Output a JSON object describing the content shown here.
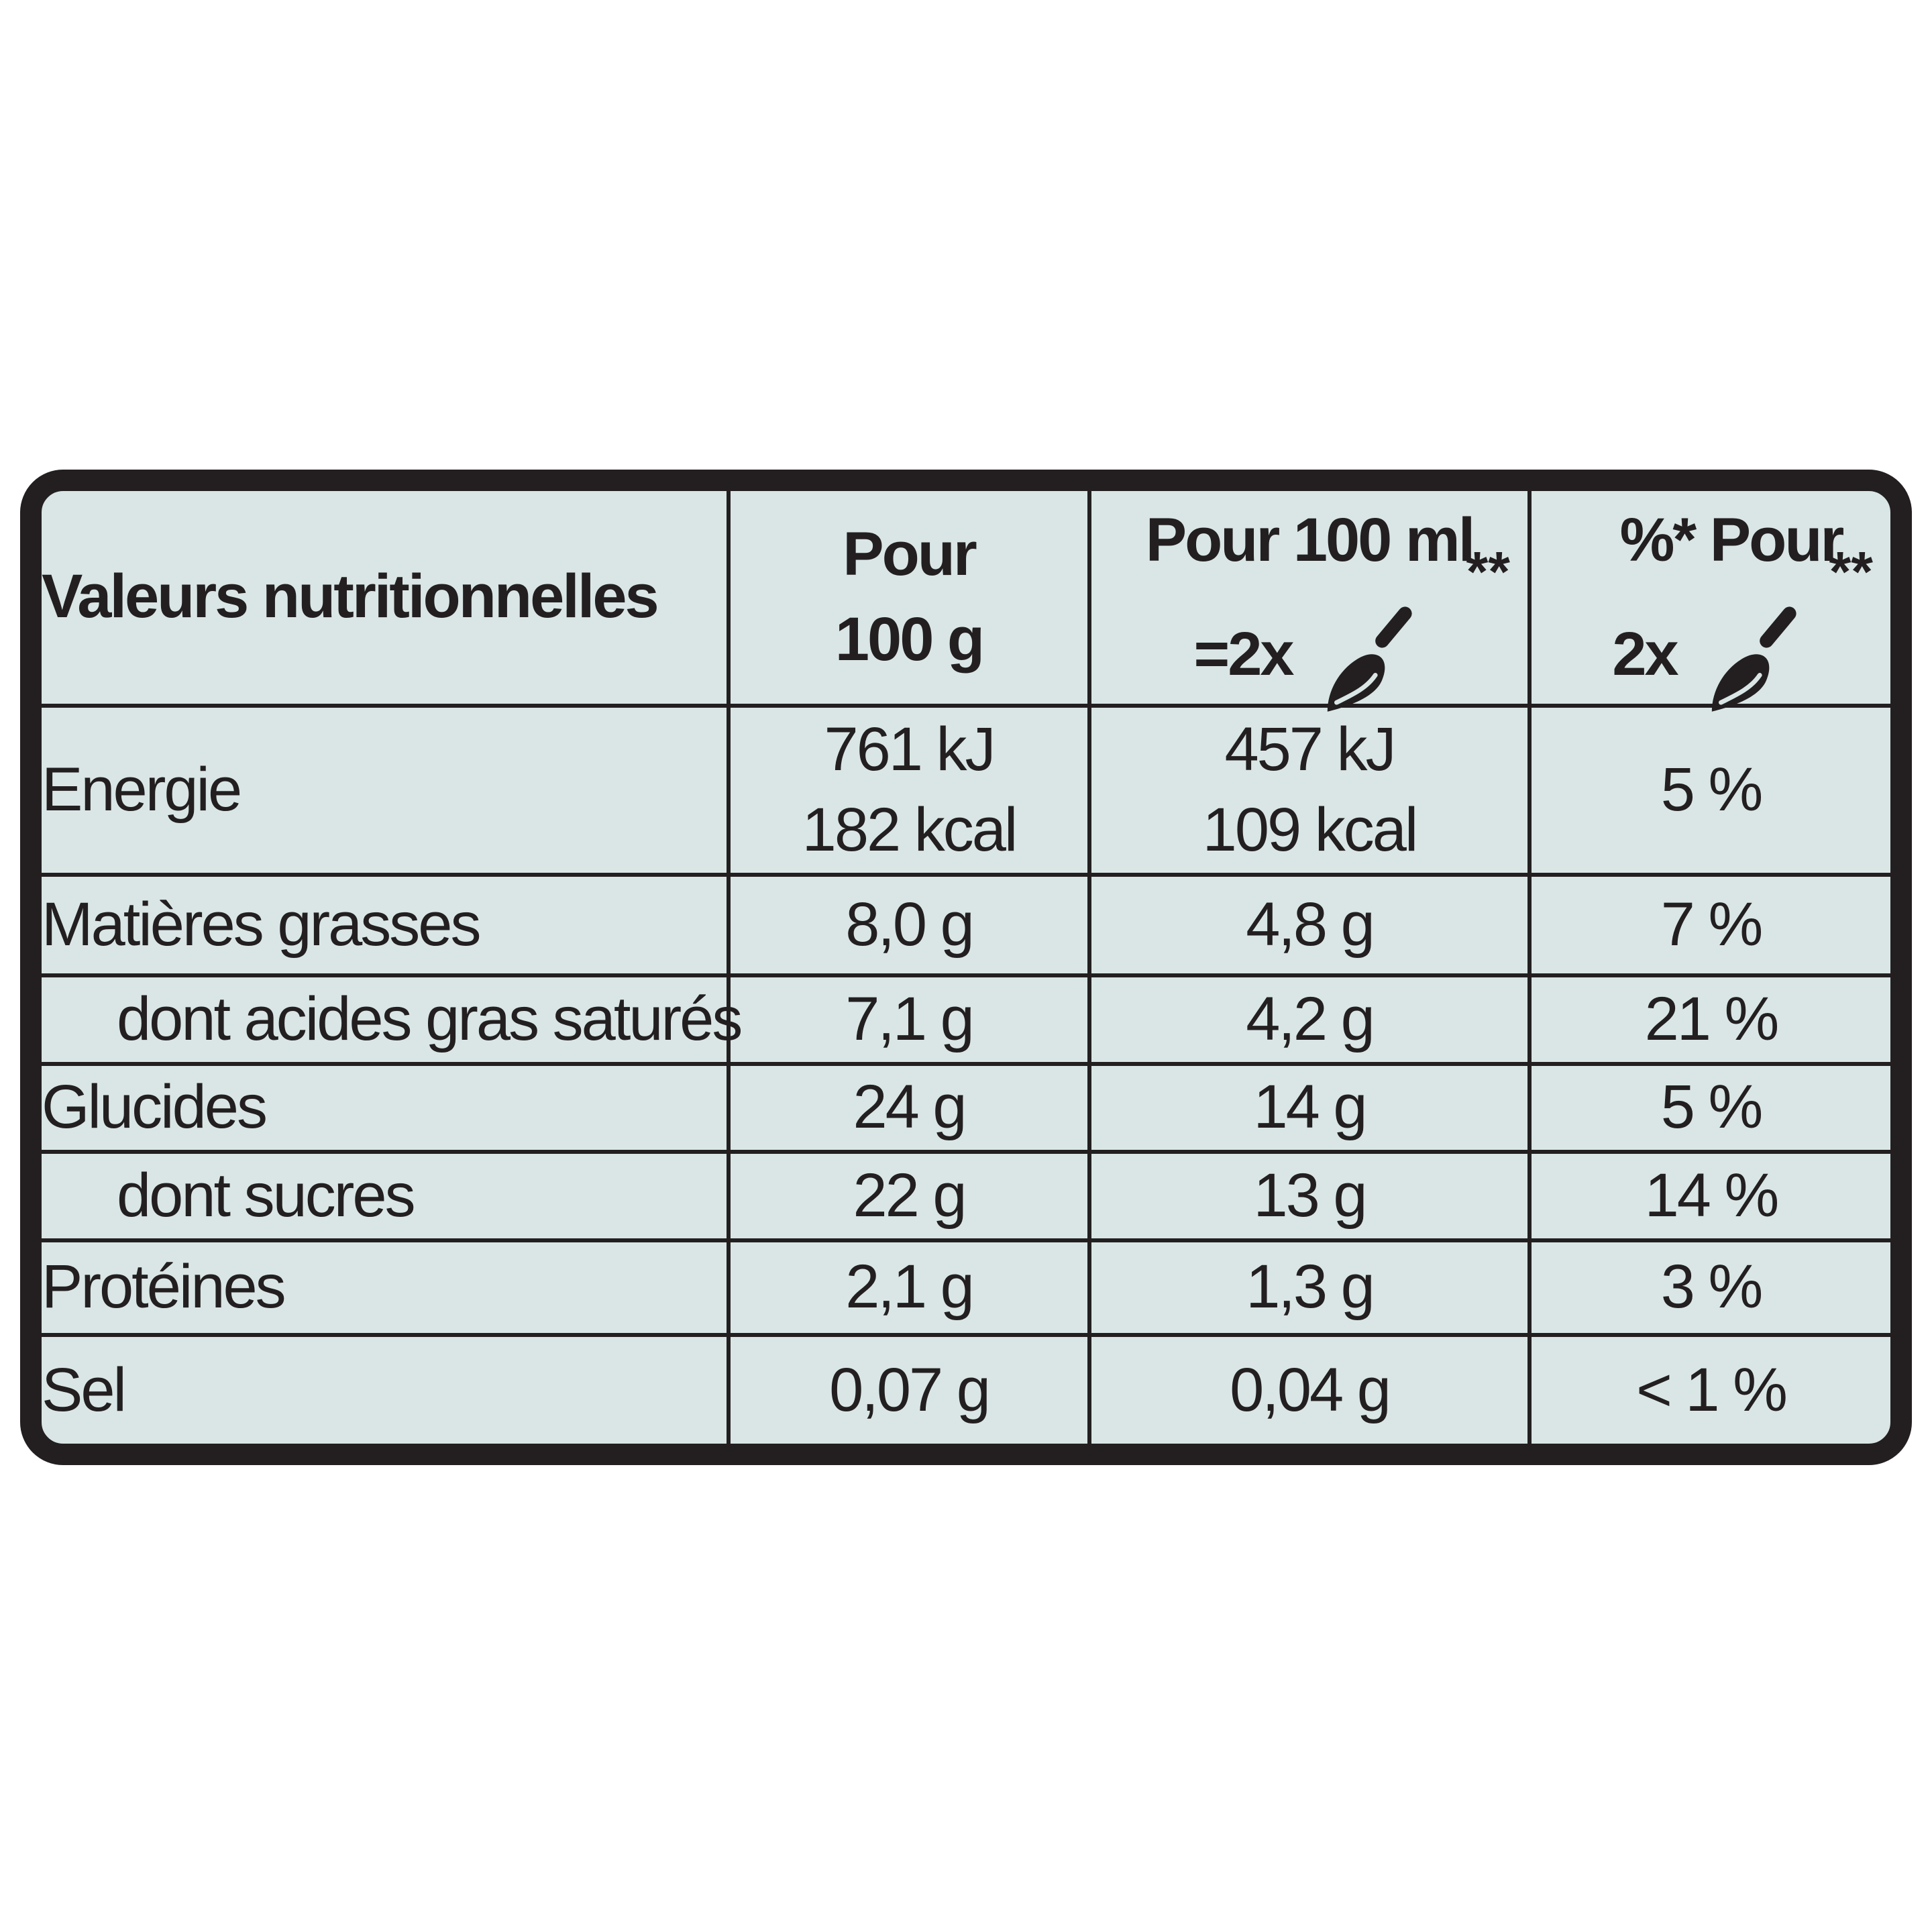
{
  "table": {
    "header": {
      "name": "Valeurs nutritionnelles",
      "col1_line1": "Pour",
      "col1_line2": "100 g",
      "col2_line1": "Pour 100 ml",
      "col2_line2": "=2x",
      "col3_line1": "%* Pour",
      "col3_line2": "2x",
      "footnote_mark": "**",
      "serving_icon": "spoon-icon"
    },
    "rows": [
      {
        "name": "Energie",
        "per100g": "761 kJ",
        "per100g_2": "182 kcal",
        "per100ml": "457 kJ",
        "per100ml_2": "109 kcal",
        "pct": "5 %"
      },
      {
        "name": "Matières grasses",
        "per100g": "8,0 g",
        "per100ml": "4,8 g",
        "pct": "7 %"
      },
      {
        "name": "dont acides gras saturés",
        "per100g": "7,1 g",
        "per100ml": "4,2 g",
        "pct": "21 %"
      },
      {
        "name": "Glucides",
        "per100g": "24 g",
        "per100ml": "14 g",
        "pct": "5 %"
      },
      {
        "name": "dont sucres",
        "per100g": "22 g",
        "per100ml": "13 g",
        "pct": "14 %"
      },
      {
        "name": "Protéines",
        "per100g": "2,1 g",
        "per100ml": "1,3 g",
        "pct": "3 %"
      },
      {
        "name": "Sel",
        "per100g": "0,07 g",
        "per100ml": "0,04 g",
        "pct": "< 1 %"
      }
    ]
  },
  "colors": {
    "background": "#d9e6e5",
    "border": "#231f20",
    "text": "#231f20"
  }
}
